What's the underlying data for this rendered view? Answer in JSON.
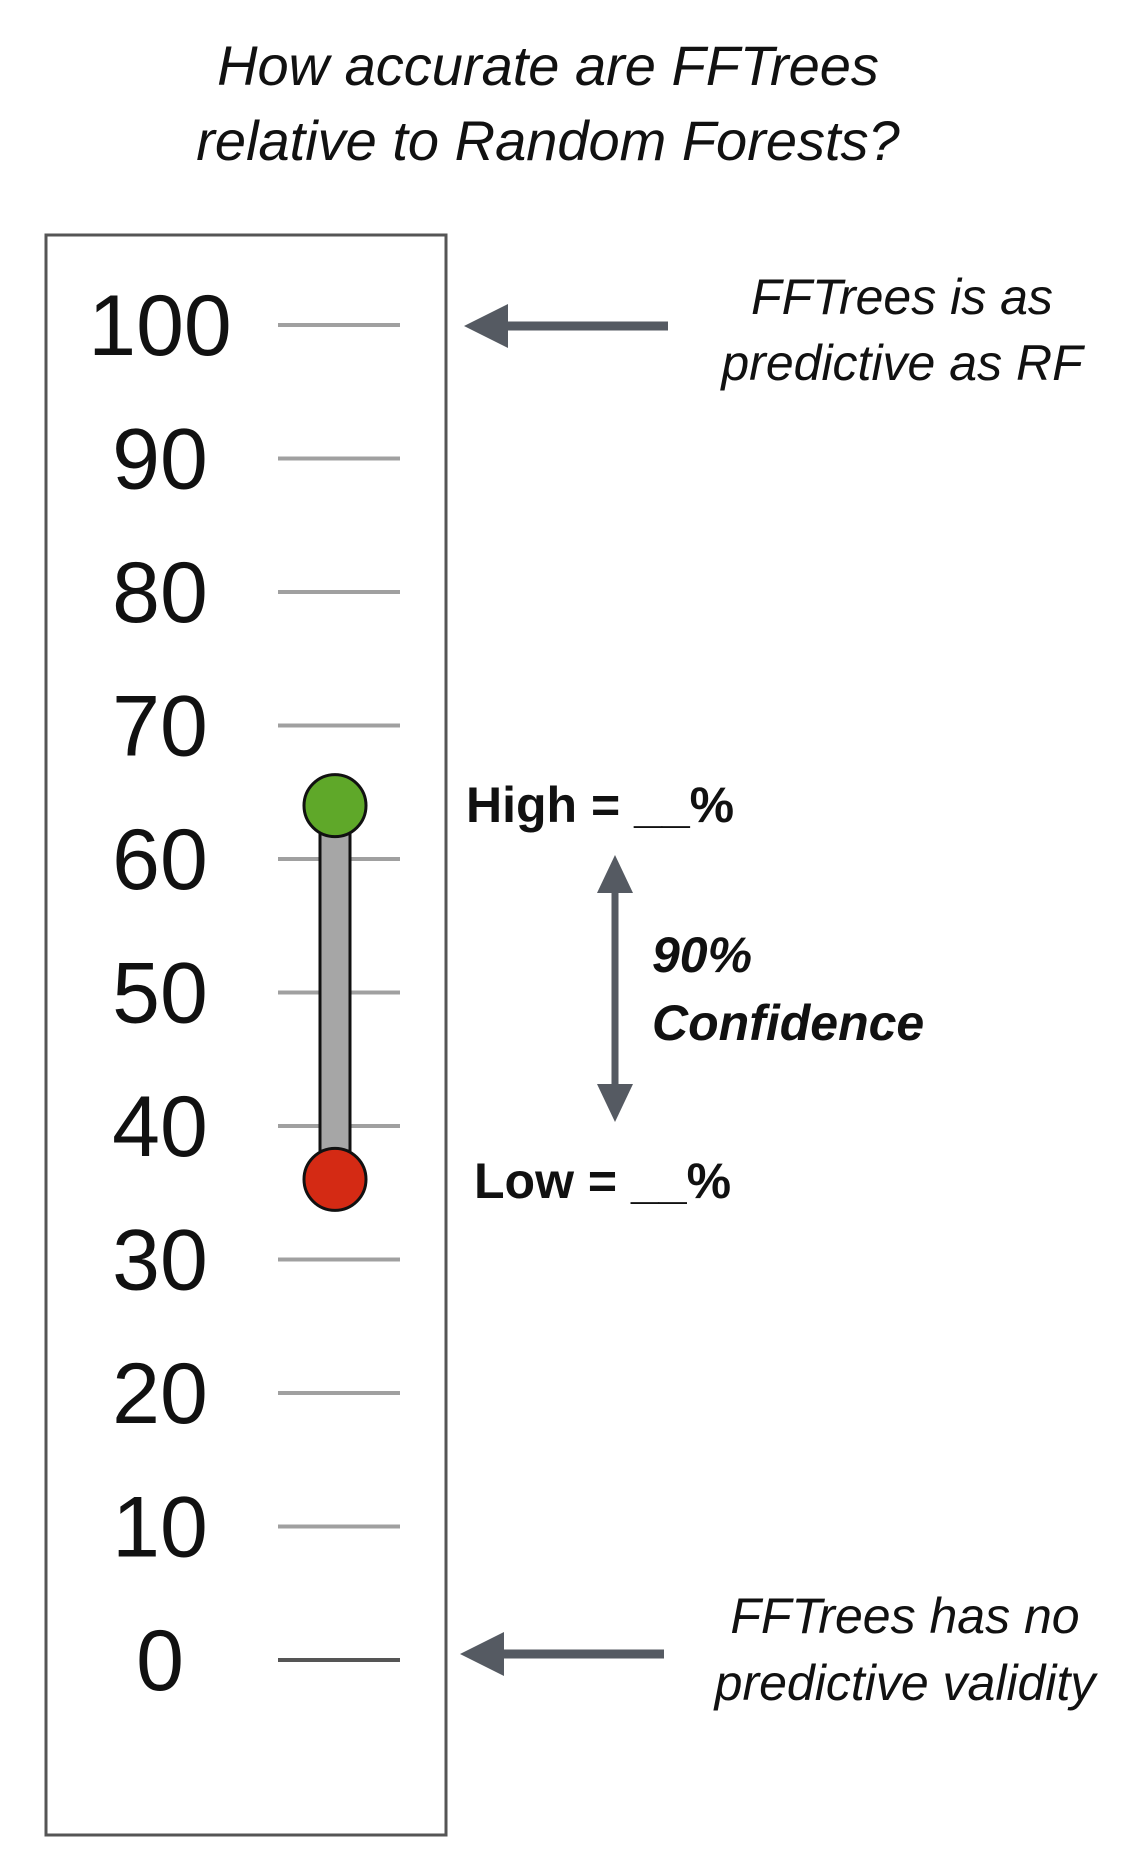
{
  "title": {
    "line1": "How accurate are FFTrees",
    "line2": "relative to Random Forests?"
  },
  "scale": {
    "ticks": [
      "100",
      "90",
      "80",
      "70",
      "60",
      "50",
      "40",
      "30",
      "20",
      "10",
      "0"
    ],
    "min": 0,
    "max": 100
  },
  "interval": {
    "high_value": 64,
    "low_value": 36,
    "high_color": "#5fa829",
    "low_color": "#d42a14",
    "bar_color": "#a6a6a6"
  },
  "labels": {
    "high": "High = __%",
    "low": "Low = __%",
    "confidence_line1": "90%",
    "confidence_line2": "Confidence"
  },
  "annotations": {
    "top_line1": "FFTrees is as",
    "top_line2": "predictive as RF",
    "bottom_line1": "FFTrees has no",
    "bottom_line2": "predictive validity"
  },
  "colors": {
    "arrow": "#555a62",
    "tick": "#a0a0a0",
    "tick_zero": "#555555",
    "frame": "#555555"
  }
}
